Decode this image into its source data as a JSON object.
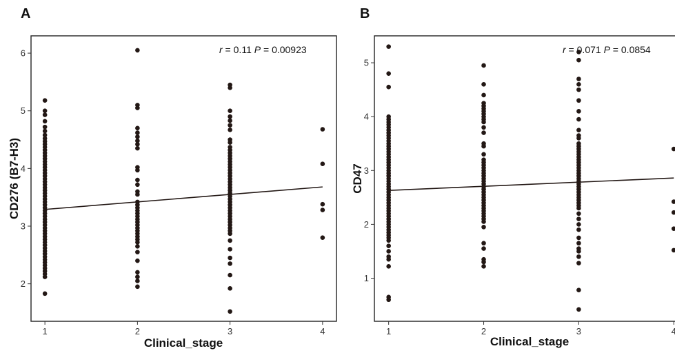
{
  "chart_data": [
    {
      "panel_label": "A",
      "type": "scatter",
      "xlabel": "Clinical_stage",
      "ylabel": "CD276 (B7-H3)",
      "xlim": [
        0.85,
        4.15
      ],
      "ylim": [
        1.35,
        6.3
      ],
      "xticks": [
        1,
        2,
        3,
        4
      ],
      "yticks": [
        2,
        3,
        4,
        5,
        6
      ],
      "grid": false,
      "stats": {
        "r_label": "r",
        "r_value": "0.11",
        "p_label": "P",
        "p_value": "0.00923"
      },
      "fit_line": {
        "x": [
          1,
          4
        ],
        "y": [
          3.29,
          3.68
        ]
      },
      "points": [
        {
          "x": 1,
          "y": [
            5.18,
            5.0,
            4.93,
            4.82,
            4.72,
            4.65,
            4.58,
            4.52,
            4.47,
            4.42,
            4.37,
            4.32,
            4.27,
            4.22,
            4.17,
            4.12,
            4.07,
            4.02,
            3.97,
            3.92,
            3.87,
            3.82,
            3.77,
            3.72,
            3.67,
            3.62,
            3.57,
            3.52,
            3.47,
            3.42,
            3.37,
            3.32,
            3.27,
            3.22,
            3.17,
            3.12,
            3.07,
            3.02,
            2.97,
            2.92,
            2.87,
            2.82,
            2.77,
            2.72,
            2.67,
            2.62,
            2.57,
            2.52,
            2.47,
            2.42,
            2.37,
            2.32,
            2.27,
            2.22,
            2.17,
            2.12,
            1.83
          ]
        },
        {
          "x": 2,
          "y": [
            6.05,
            5.1,
            5.05,
            4.7,
            4.62,
            4.55,
            4.48,
            4.42,
            4.35,
            4.02,
            3.97,
            3.8,
            3.72,
            3.6,
            3.55,
            3.42,
            3.37,
            3.32,
            3.27,
            3.22,
            3.17,
            3.12,
            3.07,
            3.02,
            2.97,
            2.92,
            2.87,
            2.82,
            2.77,
            2.72,
            2.65,
            2.55,
            2.4,
            2.2,
            2.12,
            2.05,
            1.95
          ]
        },
        {
          "x": 3,
          "y": [
            5.45,
            5.4,
            5.0,
            4.9,
            4.83,
            4.75,
            4.67,
            4.5,
            4.45,
            4.37,
            4.32,
            4.27,
            4.22,
            4.17,
            4.12,
            4.07,
            4.02,
            3.97,
            3.92,
            3.87,
            3.82,
            3.77,
            3.72,
            3.67,
            3.62,
            3.57,
            3.52,
            3.47,
            3.42,
            3.37,
            3.32,
            3.27,
            3.22,
            3.17,
            3.12,
            3.07,
            3.02,
            2.97,
            2.92,
            2.87,
            2.75,
            2.6,
            2.45,
            2.35,
            2.15,
            1.92,
            1.52
          ]
        },
        {
          "x": 4,
          "y": [
            4.68,
            4.08,
            3.38,
            3.28,
            2.8
          ]
        }
      ]
    },
    {
      "panel_label": "B",
      "type": "scatter",
      "xlabel": "Clinical_stage",
      "ylabel": "CD47",
      "xlim": [
        0.85,
        4.02
      ],
      "ylim": [
        0.2,
        5.5
      ],
      "xticks": [
        1,
        2,
        3,
        4
      ],
      "yticks": [
        1,
        2,
        3,
        4,
        5
      ],
      "grid": false,
      "stats": {
        "r_label": "r",
        "r_value": "0.071",
        "p_label": "P",
        "p_value": "0.0854"
      },
      "fit_line": {
        "x": [
          1,
          4
        ],
        "y": [
          2.63,
          2.86
        ]
      },
      "points": [
        {
          "x": 1,
          "y": [
            5.3,
            4.8,
            4.55,
            4.0,
            3.95,
            3.9,
            3.85,
            3.8,
            3.75,
            3.7,
            3.65,
            3.6,
            3.55,
            3.5,
            3.45,
            3.4,
            3.35,
            3.3,
            3.25,
            3.2,
            3.15,
            3.1,
            3.05,
            3.0,
            2.95,
            2.9,
            2.85,
            2.8,
            2.75,
            2.7,
            2.65,
            2.6,
            2.55,
            2.5,
            2.45,
            2.4,
            2.35,
            2.3,
            2.25,
            2.2,
            2.15,
            2.1,
            2.05,
            2.0,
            1.95,
            1.9,
            1.85,
            1.8,
            1.75,
            1.7,
            1.6,
            1.5,
            1.4,
            1.35,
            1.22,
            0.65,
            0.6
          ]
        },
        {
          "x": 2,
          "y": [
            4.95,
            4.6,
            4.4,
            4.25,
            4.2,
            4.15,
            4.1,
            4.05,
            4.0,
            3.95,
            3.9,
            3.8,
            3.7,
            3.5,
            3.45,
            3.3,
            3.2,
            3.15,
            3.1,
            3.05,
            3.0,
            2.95,
            2.9,
            2.85,
            2.8,
            2.75,
            2.7,
            2.65,
            2.6,
            2.55,
            2.5,
            2.45,
            2.4,
            2.35,
            2.3,
            2.25,
            2.2,
            2.15,
            2.1,
            2.05,
            1.95,
            1.65,
            1.55,
            1.35,
            1.3,
            1.22
          ]
        },
        {
          "x": 3,
          "y": [
            5.2,
            5.05,
            4.7,
            4.6,
            4.5,
            4.3,
            4.1,
            3.95,
            3.75,
            3.65,
            3.6,
            3.5,
            3.45,
            3.4,
            3.35,
            3.3,
            3.25,
            3.2,
            3.15,
            3.1,
            3.05,
            3.0,
            2.95,
            2.9,
            2.85,
            2.8,
            2.75,
            2.7,
            2.65,
            2.6,
            2.55,
            2.5,
            2.45,
            2.4,
            2.35,
            2.3,
            2.2,
            2.1,
            2.0,
            1.9,
            1.75,
            1.65,
            1.55,
            1.5,
            1.4,
            1.28,
            0.78,
            0.42
          ]
        },
        {
          "x": 4,
          "y": [
            3.4,
            2.42,
            2.22,
            1.92,
            1.52
          ]
        }
      ]
    }
  ]
}
